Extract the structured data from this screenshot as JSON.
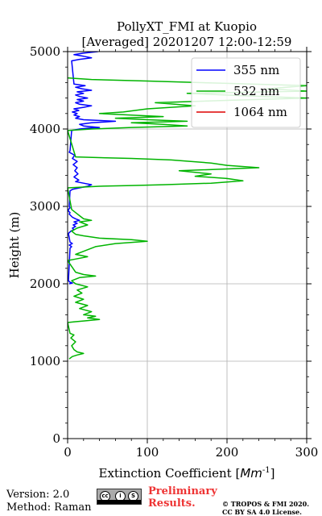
{
  "chart_data": {
    "type": "line",
    "title": "PollyXT_FMI at Kuopio",
    "subtitle": "[Averaged] 20201207 12:00-12:59",
    "xlabel": "Extinction Coefficient [",
    "xlabel_unit": "Mm",
    "xlabel_exp": "-1",
    "xlabel_end": "]",
    "ylabel": "Height (m)",
    "xlim": [
      0,
      300
    ],
    "ylim": [
      0,
      5000
    ],
    "xticks": [
      0,
      100,
      200,
      300
    ],
    "yticks": [
      0,
      1000,
      2000,
      3000,
      4000,
      5000
    ],
    "grid": true,
    "legend_position": "top-right",
    "series": [
      {
        "name": "355 nm",
        "color": "#0000ff",
        "points": [
          [
            2,
            2000
          ],
          [
            6,
            2010
          ],
          [
            3,
            2020
          ],
          [
            1,
            2040
          ],
          [
            3,
            2460
          ],
          [
            5,
            2480
          ],
          [
            2,
            2500
          ],
          [
            6,
            2520
          ],
          [
            3,
            2540
          ],
          [
            1,
            2650
          ],
          [
            4,
            2680
          ],
          [
            8,
            2700
          ],
          [
            6,
            2720
          ],
          [
            10,
            2740
          ],
          [
            7,
            2760
          ],
          [
            12,
            2780
          ],
          [
            8,
            2800
          ],
          [
            15,
            2820
          ],
          [
            10,
            2840
          ],
          [
            6,
            2860
          ],
          [
            4,
            2880
          ],
          [
            2,
            2900
          ],
          [
            3,
            2920
          ],
          [
            1,
            2940
          ],
          [
            1,
            2960
          ],
          [
            3,
            2980
          ],
          [
            2,
            3000
          ],
          [
            3,
            3200
          ],
          [
            6,
            3220
          ],
          [
            15,
            3240
          ],
          [
            25,
            3260
          ],
          [
            30,
            3280
          ],
          [
            20,
            3300
          ],
          [
            10,
            3320
          ],
          [
            14,
            3340
          ],
          [
            8,
            3380
          ],
          [
            13,
            3420
          ],
          [
            9,
            3460
          ],
          [
            12,
            3500
          ],
          [
            7,
            3540
          ],
          [
            12,
            3580
          ],
          [
            6,
            3620
          ],
          [
            9,
            3660
          ],
          [
            2,
            3700
          ],
          [
            3,
            3720
          ],
          [
            5,
            3980
          ],
          [
            15,
            4000
          ],
          [
            25,
            4010
          ],
          [
            40,
            4020
          ],
          [
            20,
            4040
          ],
          [
            15,
            4060
          ],
          [
            30,
            4080
          ],
          [
            60,
            4100
          ],
          [
            20,
            4120
          ],
          [
            10,
            4140
          ],
          [
            15,
            4160
          ],
          [
            8,
            4180
          ],
          [
            12,
            4200
          ],
          [
            6,
            4220
          ],
          [
            14,
            4240
          ],
          [
            8,
            4260
          ],
          [
            20,
            4280
          ],
          [
            30,
            4300
          ],
          [
            15,
            4320
          ],
          [
            10,
            4340
          ],
          [
            20,
            4360
          ],
          [
            12,
            4380
          ],
          [
            25,
            4400
          ],
          [
            15,
            4420
          ],
          [
            10,
            4440
          ],
          [
            20,
            4460
          ],
          [
            12,
            4480
          ],
          [
            30,
            4500
          ],
          [
            18,
            4520
          ],
          [
            10,
            4540
          ],
          [
            22,
            4560
          ],
          [
            8,
            4580
          ],
          [
            5,
            4880
          ],
          [
            15,
            4900
          ],
          [
            30,
            4920
          ],
          [
            20,
            4940
          ],
          [
            8,
            4960
          ],
          [
            20,
            4980
          ],
          [
            38,
            5000
          ]
        ]
      },
      {
        "name": "532 nm",
        "color": "#00b400",
        "points": [
          [
            2,
            1030
          ],
          [
            6,
            1060
          ],
          [
            12,
            1080
          ],
          [
            20,
            1100
          ],
          [
            12,
            1120
          ],
          [
            8,
            1150
          ],
          [
            5,
            1200
          ],
          [
            10,
            1250
          ],
          [
            4,
            1300
          ],
          [
            8,
            1340
          ],
          [
            3,
            1360
          ],
          [
            0,
            1500
          ],
          [
            10,
            1510
          ],
          [
            20,
            1520
          ],
          [
            40,
            1540
          ],
          [
            25,
            1560
          ],
          [
            35,
            1580
          ],
          [
            20,
            1600
          ],
          [
            30,
            1640
          ],
          [
            15,
            1680
          ],
          [
            25,
            1720
          ],
          [
            10,
            1760
          ],
          [
            20,
            1800
          ],
          [
            8,
            1840
          ],
          [
            18,
            1880
          ],
          [
            12,
            1920
          ],
          [
            25,
            1960
          ],
          [
            10,
            2000
          ],
          [
            5,
            2040
          ],
          [
            15,
            2080
          ],
          [
            35,
            2100
          ],
          [
            20,
            2120
          ],
          [
            10,
            2150
          ],
          [
            0,
            2300
          ],
          [
            10,
            2320
          ],
          [
            25,
            2350
          ],
          [
            10,
            2380
          ],
          [
            20,
            2420
          ],
          [
            35,
            2480
          ],
          [
            60,
            2520
          ],
          [
            100,
            2550
          ],
          [
            80,
            2570
          ],
          [
            40,
            2590
          ],
          [
            20,
            2620
          ],
          [
            10,
            2640
          ],
          [
            5,
            2680
          ],
          [
            12,
            2720
          ],
          [
            25,
            2760
          ],
          [
            15,
            2800
          ],
          [
            30,
            2820
          ],
          [
            20,
            2840
          ],
          [
            15,
            2880
          ],
          [
            10,
            2920
          ],
          [
            5,
            2960
          ],
          [
            0,
            3240
          ],
          [
            20,
            3250
          ],
          [
            40,
            3260
          ],
          [
            80,
            3270
          ],
          [
            120,
            3280
          ],
          [
            180,
            3300
          ],
          [
            220,
            3330
          ],
          [
            200,
            3360
          ],
          [
            160,
            3390
          ],
          [
            180,
            3420
          ],
          [
            140,
            3460
          ],
          [
            240,
            3500
          ],
          [
            200,
            3530
          ],
          [
            180,
            3560
          ],
          [
            130,
            3600
          ],
          [
            80,
            3620
          ],
          [
            40,
            3630
          ],
          [
            10,
            3640
          ],
          [
            0,
            3980
          ],
          [
            30,
            4000
          ],
          [
            80,
            4020
          ],
          [
            150,
            4040
          ],
          [
            120,
            4060
          ],
          [
            80,
            4080
          ],
          [
            150,
            4100
          ],
          [
            100,
            4120
          ],
          [
            60,
            4140
          ],
          [
            120,
            4160
          ],
          [
            80,
            4180
          ],
          [
            40,
            4200
          ],
          [
            70,
            4220
          ],
          [
            100,
            4260
          ],
          [
            160,
            4300
          ],
          [
            110,
            4340
          ],
          [
            200,
            4370
          ],
          [
            300,
            4400
          ],
          [
            220,
            4430
          ],
          [
            150,
            4460
          ],
          [
            300,
            4490
          ],
          [
            250,
            4520
          ],
          [
            300,
            4560
          ],
          [
            200,
            4590
          ],
          [
            100,
            4620
          ],
          [
            30,
            4640
          ],
          [
            0,
            4660
          ]
        ]
      },
      {
        "name": "1064 nm",
        "color": "#dd0000",
        "points": []
      }
    ]
  },
  "footer": {
    "version": "Version: 2.0",
    "method": "Method: Raman",
    "license_badge": {
      "symbols": [
        "cc",
        "i",
        "S"
      ],
      "bottom_text": "BY SA"
    },
    "preliminary_line1": "Preliminary",
    "preliminary_line2": "Results.",
    "copyright_line1": "© TROPOS & FMI 2020.",
    "copyright_line2": "CC BY SA 4.0 License."
  }
}
